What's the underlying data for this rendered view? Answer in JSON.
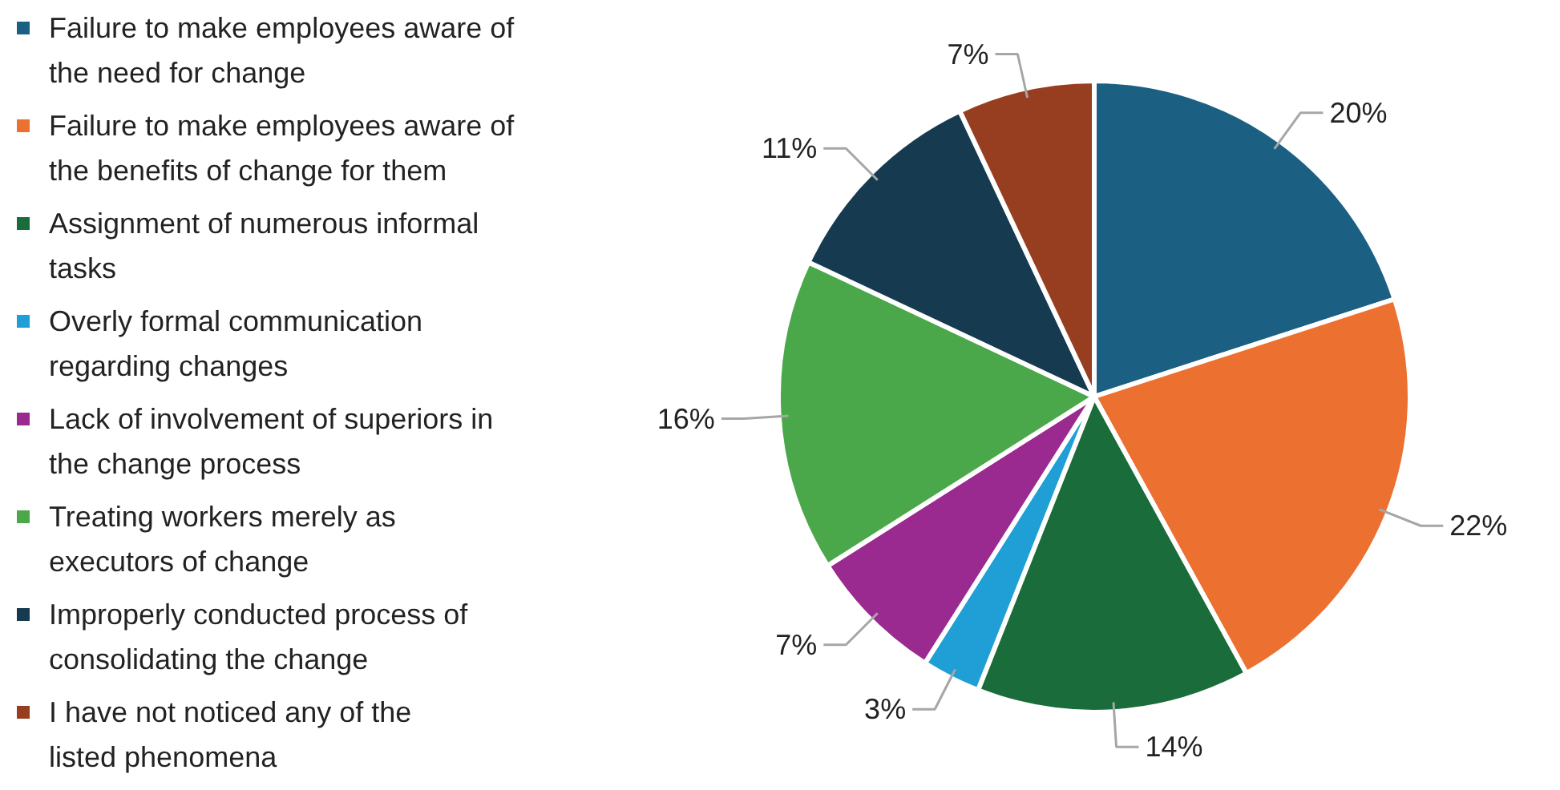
{
  "chart_data": {
    "type": "pie",
    "legend": "left",
    "categories": [
      "Failure to make employees aware of the need for change",
      "Failure to make employees aware of the benefits of change for them",
      "Assignment of numerous informal tasks",
      "Overly formal communication regarding changes",
      "Lack of involvement of superiors in the change process",
      "Treating workers merely as executors of change",
      "Improperly conducted process of consolidating the change",
      "I have not noticed any of the listed phenomena"
    ],
    "values": [
      20,
      22,
      14,
      3,
      7,
      16,
      11,
      7
    ],
    "value_labels": [
      "20%",
      "22%",
      "14%",
      "3%",
      "7%",
      "16%",
      "11%",
      "7%"
    ],
    "colors": [
      "#1b5f82",
      "#ec7131",
      "#1a6c3a",
      "#1f9fd6",
      "#9a2a90",
      "#4ba84a",
      "#163a50",
      "#983e20"
    ]
  }
}
